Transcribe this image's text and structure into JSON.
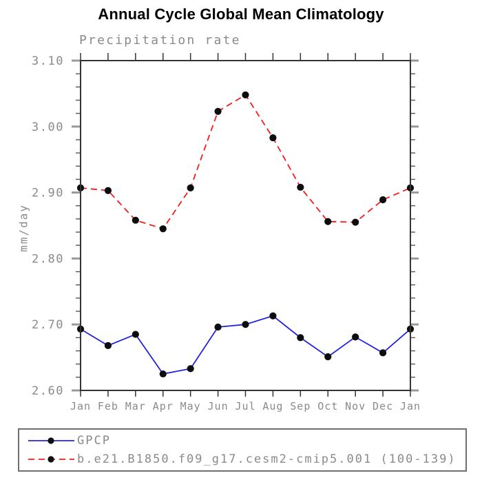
{
  "title": "Annual Cycle Global Mean Climatology",
  "subtitle": "Precipitation rate",
  "ylabel": "mm/day",
  "colors": {
    "text_gray": "#8a8a8a",
    "axis": "#333333",
    "major_tick": "#999999",
    "minor_tick": "#555555",
    "marker": "#0d0d0d",
    "gpcp_blue": "#2323dd",
    "model_red": "#f21c1c"
  },
  "chart_data": {
    "type": "line",
    "categories": [
      "Jan",
      "Feb",
      "Mar",
      "Apr",
      "May",
      "Jun",
      "Jul",
      "Aug",
      "Sep",
      "Oct",
      "Nov",
      "Dec",
      "Jan"
    ],
    "series": [
      {
        "name": "GPCP",
        "color": "#2323dd",
        "line_style": "solid",
        "marker": "black-dot",
        "values": [
          2.693,
          2.668,
          2.685,
          2.625,
          2.633,
          2.696,
          2.7,
          2.713,
          2.68,
          2.651,
          2.681,
          2.657,
          2.693
        ]
      },
      {
        "name": "b.e21.B1850.f09_g17.cesm2-cmip5.001 (100-139)",
        "color": "#f21c1c",
        "line_style": "dashed",
        "marker": "black-dot",
        "values": [
          2.907,
          2.903,
          2.858,
          2.845,
          2.907,
          3.023,
          3.048,
          2.983,
          2.908,
          2.856,
          2.855,
          2.889,
          2.907
        ]
      }
    ],
    "xlabel": "",
    "ylabel": "mm/day",
    "ylim": [
      2.6,
      3.1
    ],
    "yticks": [
      2.6,
      2.7,
      2.8,
      2.9,
      3.0,
      3.1
    ],
    "ytick_labels": [
      "2.60",
      "2.70",
      "2.80",
      "2.90",
      "3.00",
      "3.10"
    ],
    "y_minor_step": 0.02,
    "grid": false,
    "tick_direction": "out",
    "legend_position": "bottom-left-box"
  }
}
